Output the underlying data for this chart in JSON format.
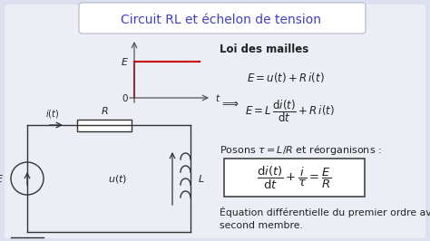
{
  "title": "Circuit RL et échelon de tension",
  "title_color": "#4040c0",
  "bg_color": "#dde0ee",
  "panel_bg": "#eceef5",
  "loi_title": "Loi des mailles",
  "step_color": "#cc0000",
  "circuit_color": "#333333",
  "title_box_color": "#ffffff",
  "title_box_edge": "#c0c0d8"
}
